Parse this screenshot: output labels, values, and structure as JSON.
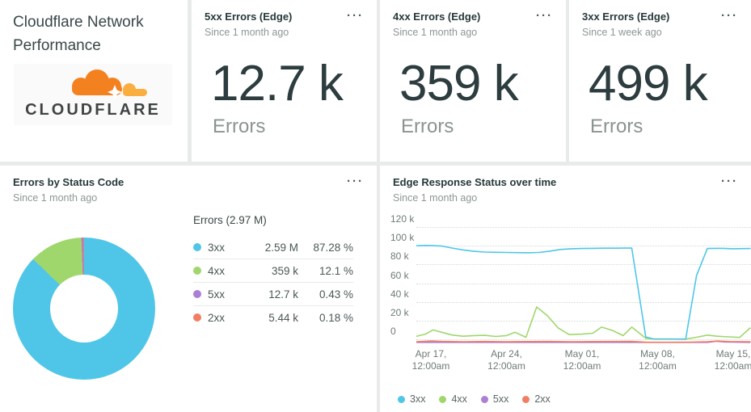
{
  "ui": {
    "menu_glyph": "···"
  },
  "colors": {
    "cloudflare_orange": "#f48120",
    "cloudflare_orange_light": "#faae40",
    "cloudflare_wordmark": "#404445",
    "series_3xx": "#4fc6e8",
    "series_4xx": "#9fd76c",
    "series_5xx": "#ab7fd6",
    "series_2xx": "#f27e62"
  },
  "header_card": {
    "title": "Cloudflare Network Performance",
    "logo_wordmark": "CLOUDFLARE"
  },
  "cards": {
    "stat": [
      {
        "title": "5xx Errors (Edge)",
        "subtitle": "Since 1 month ago",
        "value": "12.7 k",
        "unit": "Errors"
      },
      {
        "title": "4xx Errors (Edge)",
        "subtitle": "Since 1 month ago",
        "value": "359 k",
        "unit": "Errors"
      },
      {
        "title": "3xx Errors (Edge)",
        "subtitle": "Since 1 week ago",
        "value": "499 k",
        "unit": "Errors"
      }
    ],
    "donut": {
      "title": "Errors by Status Code",
      "subtitle": "Since 1 month ago"
    },
    "timeseries": {
      "title": "Edge Response Status over time",
      "subtitle": "Since 1 month ago"
    }
  },
  "chart_data": [
    {
      "type": "pie",
      "donut": true,
      "title": "Errors by Status Code",
      "subtitle": "Since 1 month ago",
      "total_label": "Errors (2.97 M)",
      "labels": [
        "3xx",
        "4xx",
        "5xx",
        "2xx"
      ],
      "values_pct": [
        87.28,
        12.1,
        0.43,
        0.18
      ],
      "values_display": [
        "2.59 M",
        "359 k",
        "12.7 k",
        "5.44 k"
      ],
      "pct_display": [
        "87.28 %",
        "12.1 %",
        "0.43 %",
        "0.18 %"
      ],
      "colors": [
        "#4fc6e8",
        "#9fd76c",
        "#ab7fd6",
        "#f27e62"
      ]
    },
    {
      "type": "line",
      "title": "Edge Response Status over time",
      "subtitle": "Since 1 month ago",
      "ylim": [
        0,
        120000
      ],
      "grid": "dotted-horizontal",
      "legend_position": "bottom-left",
      "y_ticks": [
        "120 k",
        "100 k",
        "80 k",
        "60 k",
        "40 k",
        "20 k",
        "0"
      ],
      "x_ticks": [
        [
          "Apr 17,",
          "12:00am"
        ],
        [
          "Apr 24,",
          "12:00am"
        ],
        [
          "May 01,",
          "12:00am"
        ],
        [
          "May 08,",
          "12:00am"
        ],
        [
          "May 15,",
          "12:00am"
        ]
      ],
      "x_tick_days": [
        2,
        9,
        16,
        23,
        30
      ],
      "series": [
        {
          "name": "3xx",
          "color": "#4fc6e8",
          "unit": "k",
          "points": [
            [
              0.6,
              100
            ],
            [
              1.5,
              100.3
            ],
            [
              2,
              100.2
            ],
            [
              3,
              99.6
            ],
            [
              4,
              97.5
            ],
            [
              5,
              95.5
            ],
            [
              6,
              94
            ],
            [
              7,
              93.2
            ],
            [
              8,
              93
            ],
            [
              9,
              92.8
            ],
            [
              10,
              92.6
            ],
            [
              11,
              92.5
            ],
            [
              12,
              92.8
            ],
            [
              13,
              94.2
            ],
            [
              14,
              96
            ],
            [
              15,
              96.8
            ],
            [
              16,
              97
            ],
            [
              17,
              97.2
            ],
            [
              18,
              97.4
            ],
            [
              19,
              97.4
            ],
            [
              20,
              97.5
            ],
            [
              20.6,
              97.5
            ],
            [
              21.9,
              2.5
            ],
            [
              22.6,
              0.4
            ],
            [
              25.6,
              0.2
            ],
            [
              26.6,
              68
            ],
            [
              27.6,
              97
            ],
            [
              29,
              97.2
            ],
            [
              30,
              96.8
            ],
            [
              31.6,
              97
            ]
          ]
        },
        {
          "name": "4xx",
          "color": "#9fd76c",
          "unit": "k",
          "points": [
            [
              0.6,
              3
            ],
            [
              1.5,
              5.5
            ],
            [
              2.2,
              10
            ],
            [
              3,
              7.5
            ],
            [
              4,
              4.5
            ],
            [
              5,
              3.3
            ],
            [
              6,
              4
            ],
            [
              7,
              4.2
            ],
            [
              8,
              3
            ],
            [
              9,
              4
            ],
            [
              9.8,
              7.5
            ],
            [
              10.8,
              2.2
            ],
            [
              11.8,
              34.5
            ],
            [
              12.8,
              25
            ],
            [
              13.8,
              12
            ],
            [
              14.8,
              5
            ],
            [
              16,
              5.5
            ],
            [
              17,
              6.5
            ],
            [
              17.8,
              13
            ],
            [
              18.8,
              9.5
            ],
            [
              19.8,
              4
            ],
            [
              20.6,
              13
            ],
            [
              21.9,
              1
            ],
            [
              22.8,
              0.3
            ],
            [
              25.6,
              0.3
            ],
            [
              26.6,
              2.2
            ],
            [
              27.6,
              4.5
            ],
            [
              28.6,
              3.2
            ],
            [
              29.6,
              2.6
            ],
            [
              30.6,
              2
            ],
            [
              31.6,
              12.5
            ]
          ]
        },
        {
          "name": "5xx",
          "color": "#ab7fd6",
          "unit": "k",
          "points": [
            [
              0.6,
              0.2
            ],
            [
              10,
              0.2
            ],
            [
              20,
              0.2
            ],
            [
              26,
              0.2
            ],
            [
              27.6,
              0.2
            ],
            [
              28.4,
              1.4
            ],
            [
              29.2,
              0.6
            ],
            [
              31.6,
              0.2
            ]
          ]
        },
        {
          "name": "2xx",
          "color": "#f27e62",
          "unit": "k",
          "points": [
            [
              0.6,
              0.8
            ],
            [
              2,
              1.6
            ],
            [
              3,
              1.2
            ],
            [
              5,
              0.9
            ],
            [
              7,
              1.1
            ],
            [
              9,
              0.9
            ],
            [
              11,
              1
            ],
            [
              13,
              1.1
            ],
            [
              15,
              0.9
            ],
            [
              17,
              1
            ],
            [
              19,
              1.1
            ],
            [
              20.6,
              1.2
            ],
            [
              22,
              0.3
            ],
            [
              24,
              0.3
            ],
            [
              26,
              0.4
            ],
            [
              27.6,
              0.9
            ],
            [
              28.6,
              1.6
            ],
            [
              29.6,
              1
            ],
            [
              31.6,
              0.9
            ]
          ]
        }
      ]
    }
  ]
}
